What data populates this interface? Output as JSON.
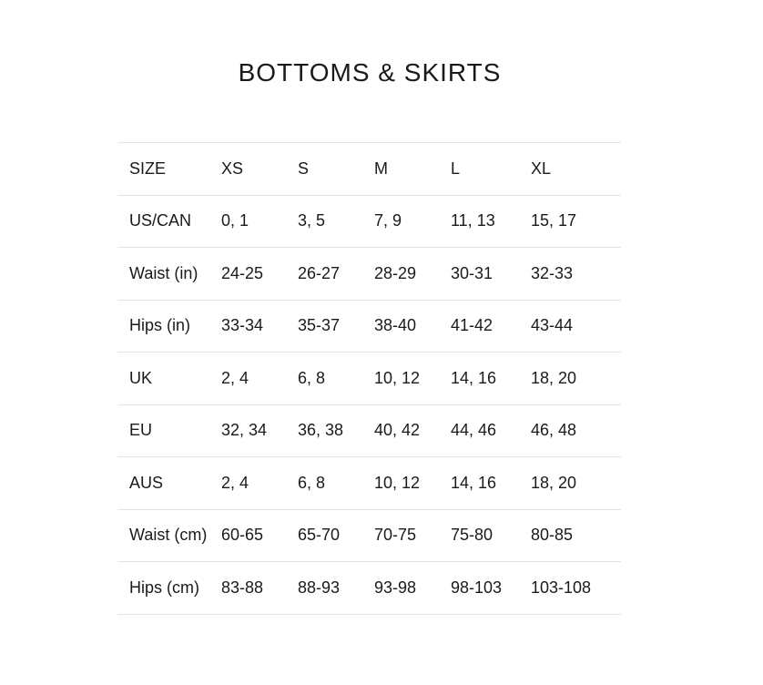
{
  "title": "BOTTOMS & SKIRTS",
  "rows": [
    [
      "SIZE",
      "XS",
      "S",
      "M",
      "L",
      "XL"
    ],
    [
      "US/CAN",
      "0, 1",
      "3, 5",
      "7, 9",
      "11, 13",
      "15, 17"
    ],
    [
      "Waist (in)",
      "24-25",
      "26-27",
      "28-29",
      "30-31",
      "32-33"
    ],
    [
      "Hips (in)",
      "33-34",
      "35-37",
      "38-40",
      "41-42",
      "43-44"
    ],
    [
      "UK",
      "2, 4",
      "6, 8",
      "10, 12",
      "14, 16",
      "18, 20"
    ],
    [
      "EU",
      "32, 34",
      "36, 38",
      "40, 42",
      "44, 46",
      "46, 48"
    ],
    [
      "AUS",
      "2, 4",
      "6, 8",
      "10, 12",
      "14, 16",
      "18, 20"
    ],
    [
      "Waist (cm)",
      "60-65",
      "65-70",
      "70-75",
      "75-80",
      "80-85"
    ],
    [
      "Hips (cm)",
      "83-88",
      "88-93",
      "93-98",
      "98-103",
      "103-108"
    ]
  ]
}
